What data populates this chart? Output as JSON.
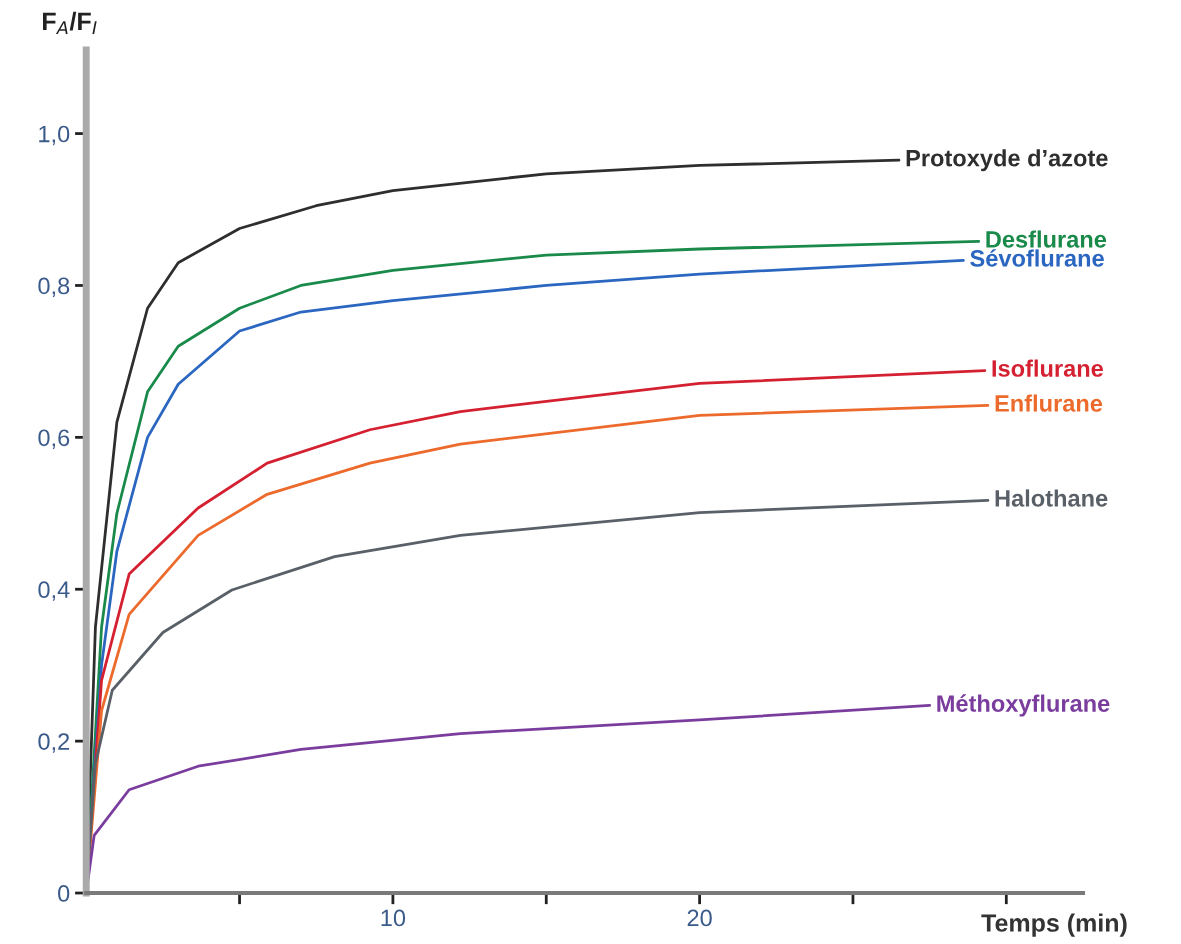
{
  "chart_data": {
    "type": "line",
    "xlabel": "Temps (min)",
    "ylabel": "F$_{A}$/F$_{I}$",
    "xlim": [
      0,
      32.5
    ],
    "ylim": [
      0,
      1.11
    ],
    "xticks": [
      {
        "value": 5,
        "label": null
      },
      10,
      {
        "value": 15,
        "label": null
      },
      20,
      {
        "value": 25,
        "label": null
      },
      {
        "value": 30,
        "label": null
      }
    ],
    "yticks": [
      0,
      {
        "value": 0.2,
        "label": "0,2"
      },
      {
        "value": 0.4,
        "label": "0,4"
      },
      {
        "value": 0.6,
        "label": "0,6"
      },
      {
        "value": 0.8,
        "label": "0,8"
      },
      {
        "value": 1.0,
        "label": "1,0"
      }
    ],
    "grid": false,
    "legend": false,
    "marker": "none",
    "line_style": "solid",
    "series": [
      {
        "name": "Protoxyde d’azote",
        "color": "#2e2e2e",
        "x": [
          0,
          0.3,
          1,
          2,
          3,
          5,
          7.5,
          10,
          15,
          20,
          26.5
        ],
        "values": [
          0,
          0.35,
          0.62,
          0.77,
          0.83,
          0.875,
          0.905,
          0.925,
          0.947,
          0.958,
          0.965
        ]
      },
      {
        "name": "Desflurane",
        "color": "#1a8a4a",
        "x": [
          0,
          0.5,
          1,
          2,
          3,
          5,
          7,
          10,
          15,
          20,
          29.1
        ],
        "values": [
          0,
          0.35,
          0.5,
          0.66,
          0.72,
          0.77,
          0.8,
          0.82,
          0.84,
          0.848,
          0.858
        ]
      },
      {
        "name": "Sévoflurane",
        "color": "#2b66c0",
        "x": [
          0,
          0.5,
          1,
          2,
          3,
          5,
          7,
          10,
          15,
          20,
          28.6
        ],
        "values": [
          0,
          0.3,
          0.45,
          0.6,
          0.67,
          0.74,
          0.765,
          0.78,
          0.8,
          0.815,
          0.833
        ]
      },
      {
        "name": "Isoflurane",
        "color": "#d42030",
        "x": [
          0,
          0.5,
          1.4,
          3.65,
          5.9,
          9.25,
          12.2,
          20,
          29.3
        ],
        "values": [
          0,
          0.28,
          0.42,
          0.507,
          0.566,
          0.61,
          0.634,
          0.671,
          0.688
        ]
      },
      {
        "name": "Enflurane",
        "color": "#ec6a2c",
        "x": [
          0,
          0.5,
          1.4,
          3.65,
          5.9,
          9.25,
          12.2,
          20,
          29.4
        ],
        "values": [
          0,
          0.24,
          0.367,
          0.471,
          0.525,
          0.566,
          0.591,
          0.629,
          0.642
        ]
      },
      {
        "name": "Halothane",
        "color": "#5a6068",
        "x": [
          0,
          0.3,
          0.85,
          2.5,
          4.75,
          8.1,
          12.2,
          20,
          29.4
        ],
        "values": [
          0,
          0.17,
          0.267,
          0.343,
          0.399,
          0.443,
          0.471,
          0.501,
          0.517
        ]
      },
      {
        "name": "Méthoxyflurane",
        "color": "#7a3d9e",
        "x": [
          0,
          0.26,
          1.4,
          3.65,
          7.0,
          12.2,
          20,
          27.5
        ],
        "values": [
          0,
          0.076,
          0.136,
          0.167,
          0.189,
          0.21,
          0.228,
          0.247
        ]
      }
    ]
  }
}
